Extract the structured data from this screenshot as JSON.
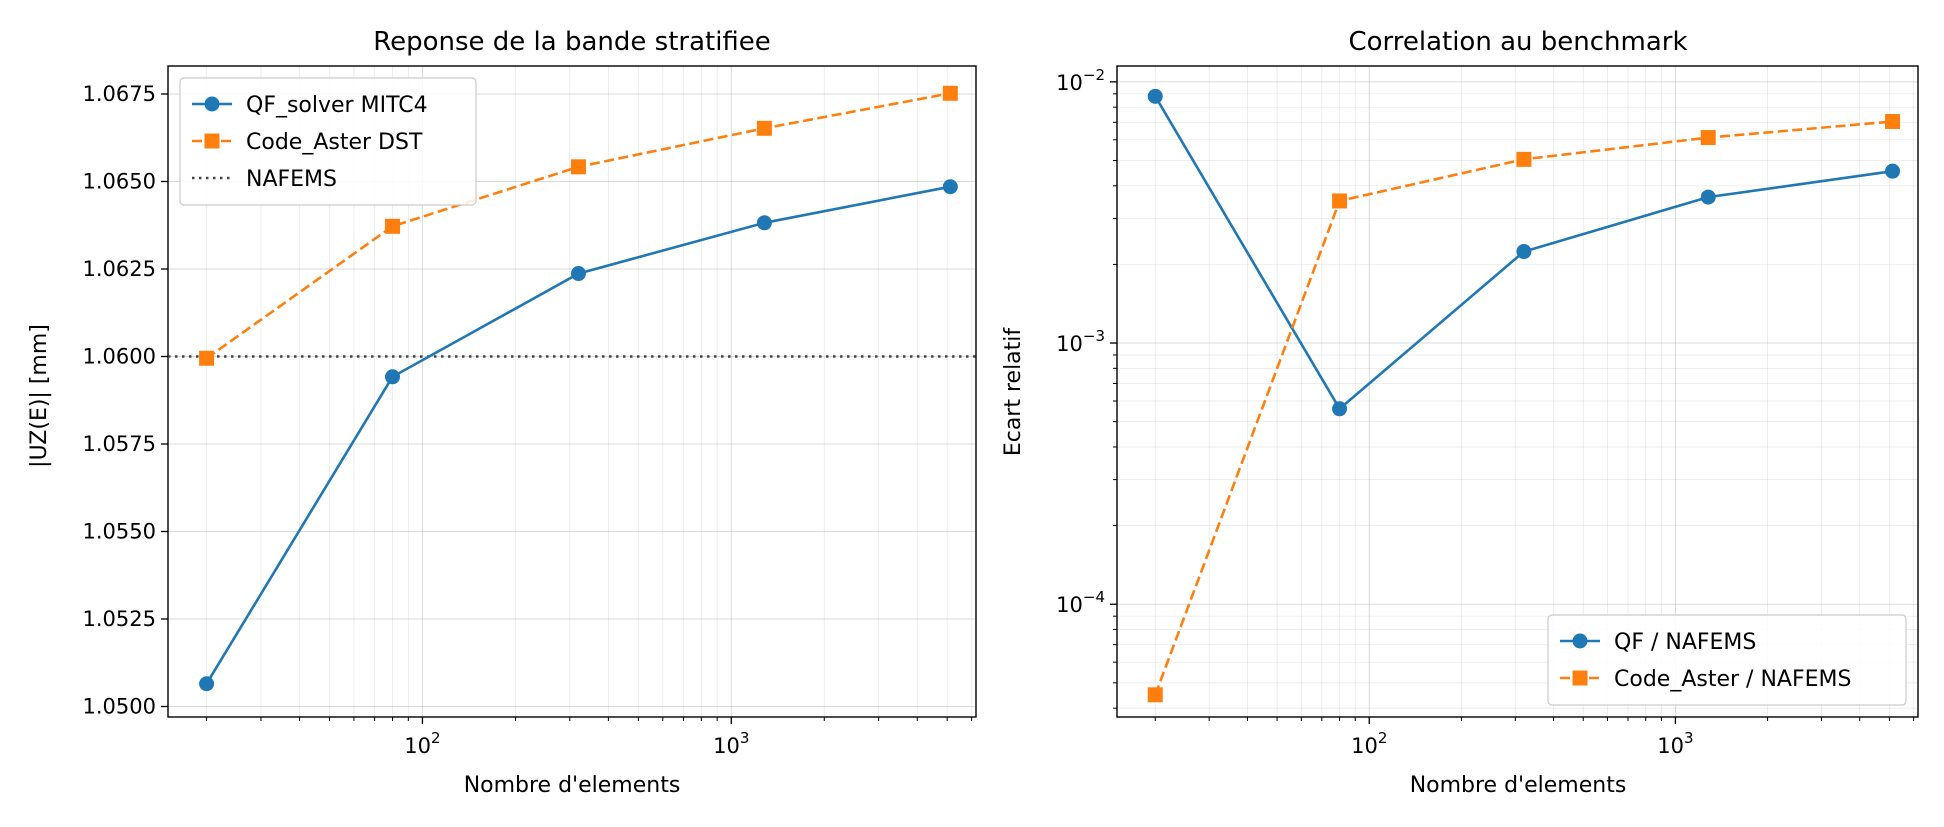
{
  "chart_data": [
    {
      "type": "line",
      "title": "Reponse de la bande stratifiee",
      "xlabel": "Nombre d'elements",
      "ylabel": "|UZ(E)| [mm]",
      "xscale": "log",
      "yscale": "linear",
      "xlim": [
        15,
        6200
      ],
      "ylim": [
        1.0497,
        1.0683
      ],
      "x_tick_labels": [
        {
          "value": 100,
          "base": "10",
          "exp": "2"
        },
        {
          "value": 1000,
          "base": "10",
          "exp": "3"
        }
      ],
      "y_ticks": [
        1.05,
        1.0525,
        1.055,
        1.0575,
        1.06,
        1.0625,
        1.065,
        1.0675
      ],
      "y_tick_labels": [
        "1.0500",
        "1.0525",
        "1.0550",
        "1.0575",
        "1.0600",
        "1.0625",
        "1.0650",
        "1.0675"
      ],
      "grid": true,
      "legend_position": "upper-left",
      "x": [
        20,
        80,
        320,
        1280,
        5120
      ],
      "series": [
        {
          "name": "QF_solver MITC4",
          "values": [
            1.05065,
            1.05942,
            1.06237,
            1.06382,
            1.06485
          ],
          "color": "#1f77b4",
          "marker": "circle",
          "linestyle": "solid"
        },
        {
          "name": "Code_Aster DST",
          "values": [
            1.05995,
            1.06372,
            1.06542,
            1.06652,
            1.06752
          ],
          "color": "#ff7f0e",
          "marker": "square",
          "linestyle": "dashed"
        }
      ],
      "reference_lines": [
        {
          "name": "NAFEMS",
          "value": 1.06,
          "color": "#444444",
          "linestyle": "dotted"
        }
      ]
    },
    {
      "type": "line",
      "title": "Correlation au benchmark",
      "xlabel": "Nombre d'elements",
      "ylabel": "Ecart relatif",
      "xscale": "log",
      "yscale": "log",
      "xlim": [
        15,
        6200
      ],
      "ylim": [
        3.7e-05,
        0.0115
      ],
      "x_tick_labels": [
        {
          "value": 100,
          "base": "10",
          "exp": "2"
        },
        {
          "value": 1000,
          "base": "10",
          "exp": "3"
        }
      ],
      "y_tick_labels": [
        {
          "value": 0.0001,
          "base": "10",
          "exp": "−4"
        },
        {
          "value": 0.001,
          "base": "10",
          "exp": "−3"
        },
        {
          "value": 0.01,
          "base": "10",
          "exp": "−2"
        }
      ],
      "grid": true,
      "legend_position": "lower-right",
      "x": [
        20,
        80,
        320,
        1280,
        5120
      ],
      "series": [
        {
          "name": "QF / NAFEMS",
          "values": [
            0.0088,
            0.00056,
            0.00224,
            0.00362,
            0.00455
          ],
          "color": "#1f77b4",
          "marker": "circle",
          "linestyle": "solid"
        },
        {
          "name": "Code_Aster / NAFEMS",
          "values": [
            4.5e-05,
            0.0035,
            0.00505,
            0.00612,
            0.00705
          ],
          "color": "#ff7f0e",
          "marker": "square",
          "linestyle": "dashed"
        }
      ]
    }
  ]
}
